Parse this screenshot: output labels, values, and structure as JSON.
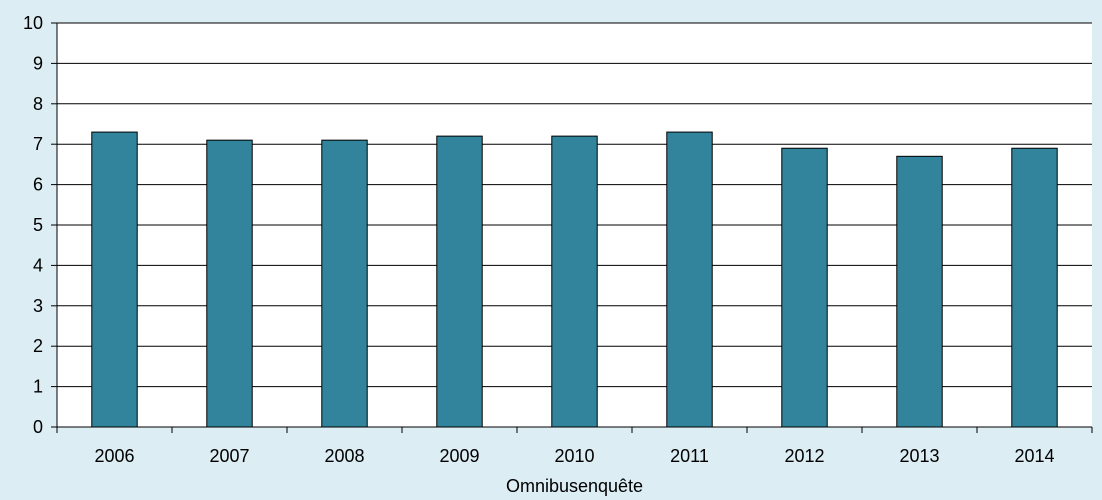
{
  "chart_data": {
    "type": "bar",
    "categories": [
      "2006",
      "2007",
      "2008",
      "2009",
      "2010",
      "2011",
      "2012",
      "2013",
      "2014"
    ],
    "values": [
      7.3,
      7.1,
      7.1,
      7.2,
      7.2,
      7.3,
      6.9,
      6.7,
      6.9
    ],
    "title": "",
    "xlabel": "Omnibusenquête",
    "ylabel": "",
    "ylim": [
      0,
      10
    ],
    "yticks": [
      "0",
      "1",
      "2",
      "3",
      "4",
      "5",
      "6",
      "7",
      "8",
      "9",
      "10"
    ],
    "grid": "horizontal",
    "legend": "none",
    "colors": {
      "bar": "#31849b",
      "background": "#dcedf4",
      "plot_area": "#ffffff"
    }
  }
}
